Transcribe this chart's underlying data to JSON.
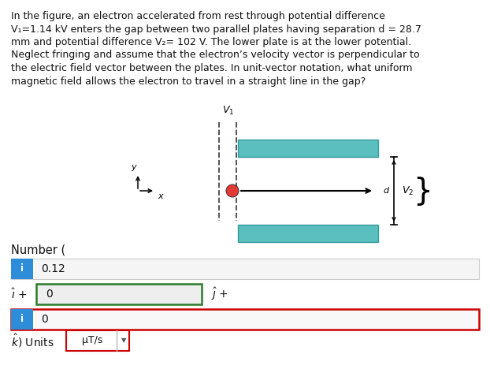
{
  "title_lines": [
    "In the figure, an electron accelerated from rest through potential difference",
    "V₁=1.14 kV enters the gap between two parallel plates having separation d = 28.7",
    "mm and potential difference V₂= 102 V. The lower plate is at the lower potential.",
    "Neglect fringing and assume that the electron’s velocity vector is perpendicular to",
    "the electric field vector between the plates. In unit-vector notation, what uniform",
    "magnetic field allows the electron to travel in a straight line in the gap?"
  ],
  "number_label": "Number (",
  "i_value": "0.12",
  "i_hat_value": "0",
  "j_hat_value": "0",
  "units_value": "μT/s",
  "bg_color": "#ffffff",
  "blue_box_color": "#2d8dd9",
  "red_border_color": "#cc0000",
  "green_border_color": "#2d7a2d",
  "plate_color": "#5bbfbf",
  "plate_edge_color": "#3a9999",
  "electron_color": "#e53935",
  "text_color": "#111111",
  "row_bg": "#f0f0f0",
  "row_border": "#cccccc",
  "white": "#ffffff"
}
